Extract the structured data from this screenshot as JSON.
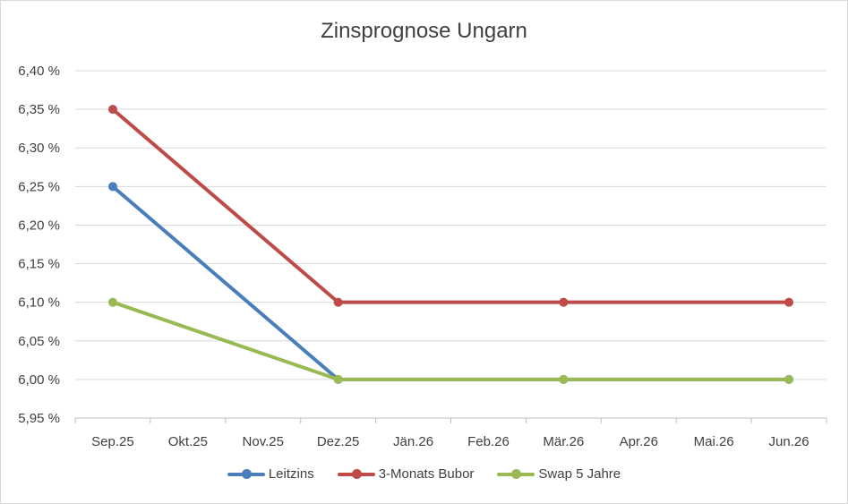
{
  "chart_data": {
    "type": "line",
    "title": "Zinsprognose Ungarn",
    "xlabel": "",
    "ylabel": "",
    "categories": [
      "Sep.25",
      "Okt.25",
      "Nov.25",
      "Dez.25",
      "Jän.26",
      "Feb.26",
      "Mär.26",
      "Apr.26",
      "Mai.26",
      "Jun.26"
    ],
    "ylim": [
      5.95,
      6.4
    ],
    "y_ticks": [
      "5,95 %",
      "6,00 %",
      "6,05 %",
      "6,10 %",
      "6,15 %",
      "6,20 %",
      "6,25 %",
      "6,30 %",
      "6,35 %",
      "6,40 %"
    ],
    "grid": true,
    "legend": "bottom",
    "series": [
      {
        "name": "Leitzins",
        "color": "#4a7ebb",
        "values": [
          6.25,
          null,
          null,
          6.0,
          null,
          null,
          6.0,
          null,
          null,
          6.0
        ]
      },
      {
        "name": "3-Monats Bubor",
        "color": "#be4b48",
        "values": [
          6.35,
          null,
          null,
          6.1,
          null,
          null,
          6.1,
          null,
          null,
          6.1
        ]
      },
      {
        "name": "Swap 5 Jahre",
        "color": "#98b954",
        "values": [
          6.1,
          null,
          null,
          6.0,
          null,
          null,
          6.0,
          null,
          null,
          6.0
        ]
      }
    ]
  }
}
